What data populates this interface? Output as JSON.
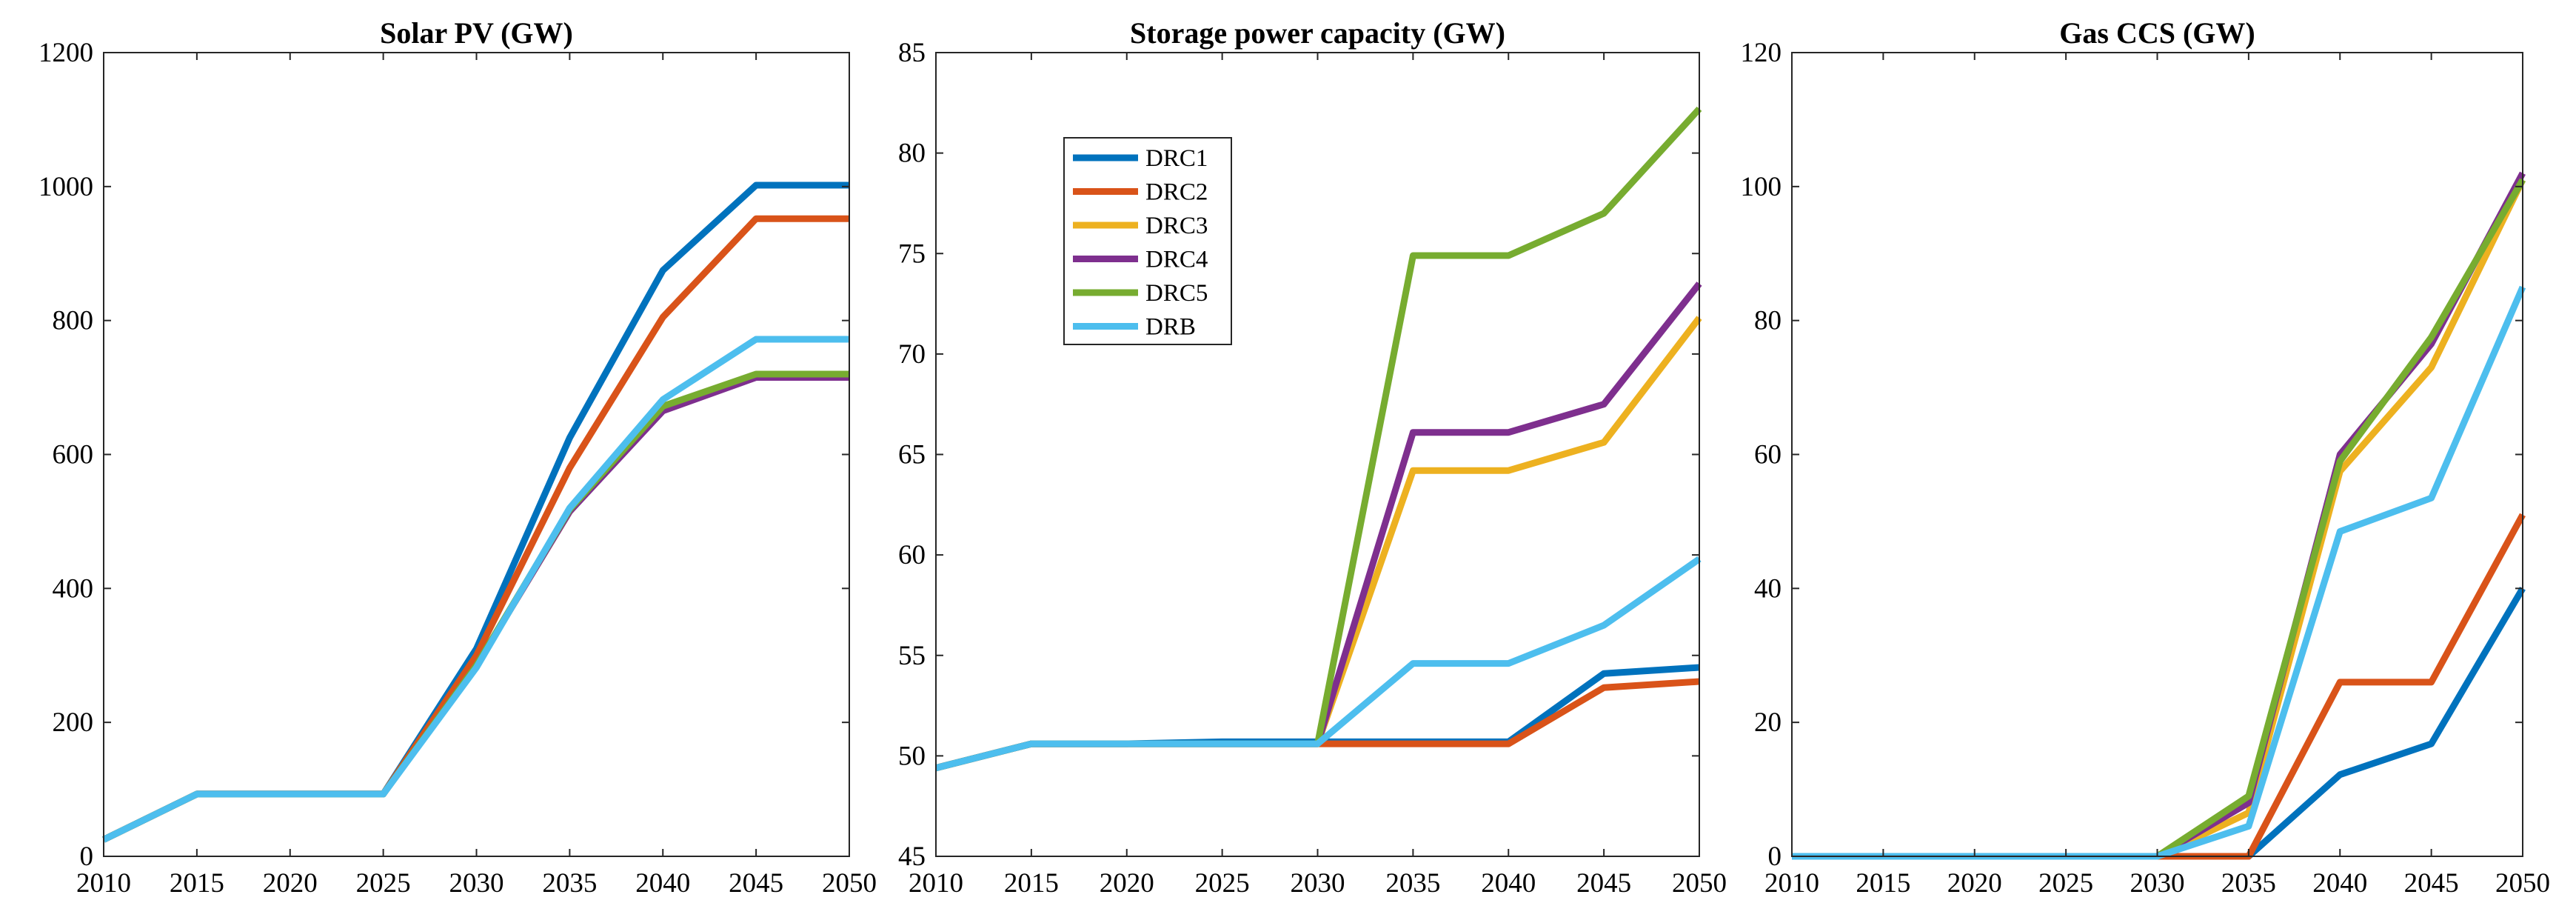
{
  "chart_data": [
    {
      "type": "line",
      "title": "Solar PV (GW)",
      "xlabel": "",
      "ylabel": "",
      "x": [
        2010,
        2015,
        2020,
        2025,
        2030,
        2035,
        2040,
        2045,
        2050
      ],
      "xlim": [
        2010,
        2050
      ],
      "ylim": [
        0,
        1200
      ],
      "xticks": [
        2010,
        2015,
        2020,
        2025,
        2030,
        2035,
        2040,
        2045,
        2050
      ],
      "yticks": [
        0,
        200,
        400,
        600,
        800,
        1000,
        1200
      ],
      "grid": false,
      "series": [
        {
          "name": "DRC1",
          "color": "#0072BD",
          "values": [
            25,
            93,
            93,
            93,
            310,
            625,
            875,
            1002,
            1002
          ]
        },
        {
          "name": "DRC2",
          "color": "#D95319",
          "values": [
            25,
            93,
            93,
            93,
            300,
            580,
            805,
            952,
            952
          ]
        },
        {
          "name": "DRC3",
          "color": "#EDB120",
          "values": [
            25,
            93,
            93,
            93,
            285,
            515,
            668,
            718,
            718
          ]
        },
        {
          "name": "DRC4",
          "color": "#7E2F8E",
          "values": [
            25,
            93,
            93,
            93,
            285,
            515,
            665,
            715,
            715
          ]
        },
        {
          "name": "DRC5",
          "color": "#77AC30",
          "values": [
            25,
            93,
            93,
            93,
            285,
            518,
            672,
            720,
            720
          ]
        },
        {
          "name": "DRB",
          "color": "#4DBEEE",
          "values": [
            25,
            93,
            93,
            93,
            282,
            520,
            682,
            772,
            772
          ]
        }
      ]
    },
    {
      "type": "line",
      "title": "Storage power capacity (GW)",
      "xlabel": "",
      "ylabel": "",
      "x": [
        2010,
        2015,
        2020,
        2025,
        2030,
        2035,
        2040,
        2045,
        2050
      ],
      "xlim": [
        2010,
        2050
      ],
      "ylim": [
        45,
        85
      ],
      "xticks": [
        2010,
        2015,
        2020,
        2025,
        2030,
        2035,
        2040,
        2045,
        2050
      ],
      "yticks": [
        45,
        50,
        55,
        60,
        65,
        70,
        75,
        80,
        85
      ],
      "grid": false,
      "legend": "top-left",
      "series": [
        {
          "name": "DRC1",
          "color": "#0072BD",
          "values": [
            49.4,
            50.6,
            50.6,
            50.7,
            50.7,
            50.7,
            50.7,
            54.1,
            54.4
          ]
        },
        {
          "name": "DRC2",
          "color": "#D95319",
          "values": [
            49.4,
            50.6,
            50.6,
            50.6,
            50.6,
            50.6,
            50.6,
            53.4,
            53.7
          ]
        },
        {
          "name": "DRC3",
          "color": "#EDB120",
          "values": [
            49.4,
            50.6,
            50.6,
            50.6,
            50.6,
            64.2,
            64.2,
            65.6,
            71.8
          ]
        },
        {
          "name": "DRC4",
          "color": "#7E2F8E",
          "values": [
            49.4,
            50.6,
            50.6,
            50.6,
            50.6,
            66.1,
            66.1,
            67.5,
            73.5
          ]
        },
        {
          "name": "DRC5",
          "color": "#77AC30",
          "values": [
            49.4,
            50.6,
            50.6,
            50.6,
            50.6,
            74.9,
            74.9,
            77.0,
            82.2
          ]
        },
        {
          "name": "DRB",
          "color": "#4DBEEE",
          "values": [
            49.4,
            50.6,
            50.6,
            50.6,
            50.6,
            54.6,
            54.6,
            56.5,
            59.8
          ]
        }
      ]
    },
    {
      "type": "line",
      "title": "Gas CCS (GW)",
      "xlabel": "",
      "ylabel": "",
      "x": [
        2010,
        2015,
        2020,
        2025,
        2030,
        2035,
        2040,
        2045,
        2050
      ],
      "xlim": [
        2010,
        2050
      ],
      "ylim": [
        0,
        120
      ],
      "xticks": [
        2010,
        2015,
        2020,
        2025,
        2030,
        2035,
        2040,
        2045,
        2050
      ],
      "yticks": [
        0,
        20,
        40,
        60,
        80,
        100,
        120
      ],
      "grid": false,
      "series": [
        {
          "name": "DRC1",
          "color": "#0072BD",
          "values": [
            0,
            0,
            0,
            0,
            0,
            0,
            12.2,
            16.8,
            40
          ]
        },
        {
          "name": "DRC2",
          "color": "#D95319",
          "values": [
            0,
            0,
            0,
            0,
            0,
            0,
            26,
            26,
            51
          ]
        },
        {
          "name": "DRC3",
          "color": "#EDB120",
          "values": [
            0,
            0,
            0,
            0,
            0,
            6.5,
            57.5,
            73,
            101
          ]
        },
        {
          "name": "DRC4",
          "color": "#7E2F8E",
          "values": [
            0,
            0,
            0,
            0,
            0,
            8,
            60,
            76.5,
            102
          ]
        },
        {
          "name": "DRC5",
          "color": "#77AC30",
          "values": [
            0,
            0,
            0,
            0,
            0,
            9,
            59,
            77.5,
            101
          ]
        },
        {
          "name": "DRB",
          "color": "#4DBEEE",
          "values": [
            0,
            0,
            0,
            0,
            0,
            4.5,
            48.5,
            53.5,
            85
          ]
        }
      ]
    }
  ]
}
